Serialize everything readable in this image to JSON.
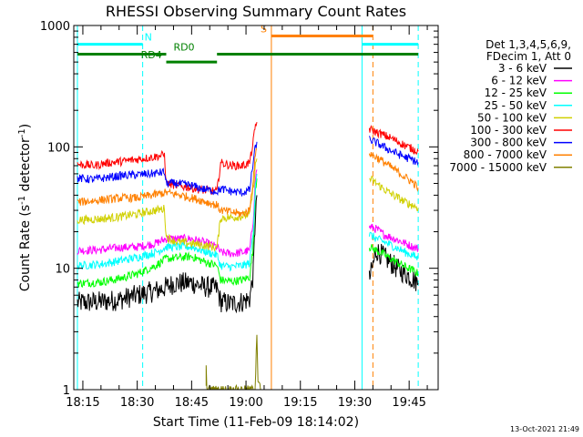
{
  "chart_data": {
    "type": "line",
    "title": "RHESSI Observing Summary Count Rates",
    "xlabel": "Start Time (11-Feb-09 18:14:02)",
    "ylabel": "Count Rate (s",
    "ylabel_sup1": "-1",
    "ylabel_mid": " detector",
    "ylabel_sup2": "-1",
    "ylabel_end": ")",
    "x_unit": "minutes after 18:00 UT",
    "xlim": [
      12.5,
      113.0
    ],
    "ylim": [
      1,
      1000
    ],
    "y_scale": "log",
    "x_ticks": [
      {
        "value": 15,
        "label": "18:15"
      },
      {
        "value": 30,
        "label": "18:30"
      },
      {
        "value": 45,
        "label": "18:45"
      },
      {
        "value": 60,
        "label": "19:00"
      },
      {
        "value": 75,
        "label": "19:15"
      },
      {
        "value": 90,
        "label": "19:30"
      },
      {
        "value": 105,
        "label": "19:45"
      }
    ],
    "y_ticks": [
      {
        "value": 1,
        "label": "1"
      },
      {
        "value": 10,
        "label": "10"
      },
      {
        "value": 100,
        "label": "100"
      },
      {
        "value": 1000,
        "label": "1000"
      }
    ],
    "legend_header": [
      "Det 1,3,4,5,6,9,",
      "FDecim 1, Att 0"
    ],
    "legend_position": "right",
    "series": [
      {
        "name": "3 - 6 keV",
        "color": "#000000",
        "segments": [
          [
            [
              13.5,
              5.2
            ],
            [
              20,
              5.3
            ],
            [
              25,
              5.5
            ],
            [
              30,
              6.0
            ],
            [
              35,
              6.5
            ],
            [
              38,
              7.0
            ],
            [
              40,
              7.5
            ],
            [
              45,
              7.6
            ],
            [
              48,
              7.1
            ],
            [
              52,
              6.8
            ],
            [
              53,
              5.3
            ],
            [
              56,
              5.1
            ],
            [
              59,
              5.3
            ],
            [
              61,
              5.6
            ],
            [
              62,
              9
            ],
            [
              62.6,
              28
            ],
            [
              63,
              40
            ]
          ],
          [
            [
              94,
              8
            ],
            [
              96,
              14
            ],
            [
              98,
              12.5
            ],
            [
              100,
              11
            ],
            [
              102,
              9.8
            ],
            [
              104,
              9
            ],
            [
              106,
              8.2
            ],
            [
              107.5,
              7.5
            ]
          ]
        ]
      },
      {
        "name": "6 - 12 keV",
        "color": "#ff00ff",
        "segments": [
          [
            [
              13.5,
              14
            ],
            [
              20,
              14.2
            ],
            [
              25,
              14.8
            ],
            [
              30,
              15
            ],
            [
              35,
              16
            ],
            [
              38,
              17.5
            ],
            [
              45,
              17.5
            ],
            [
              48,
              16.5
            ],
            [
              52,
              15
            ],
            [
              53,
              13.5
            ],
            [
              56,
              13.2
            ],
            [
              59,
              13.5
            ],
            [
              61,
              14
            ],
            [
              62,
              25
            ],
            [
              62.6,
              55
            ],
            [
              63,
              65
            ]
          ],
          [
            [
              94,
              22
            ],
            [
              96,
              21
            ],
            [
              98,
              19
            ],
            [
              100,
              18
            ],
            [
              102,
              17
            ],
            [
              104,
              16
            ],
            [
              106,
              15
            ],
            [
              107.5,
              14.5
            ]
          ]
        ]
      },
      {
        "name": "12 - 25 keV",
        "color": "#00ff00",
        "segments": [
          [
            [
              13.5,
              7.5
            ],
            [
              20,
              7.7
            ],
            [
              25,
              8.2
            ],
            [
              30,
              9.0
            ],
            [
              35,
              10.5
            ],
            [
              38,
              12
            ],
            [
              45,
              12.5
            ],
            [
              48,
              11.5
            ],
            [
              52,
              10.5
            ],
            [
              53,
              8.0
            ],
            [
              56,
              7.8
            ],
            [
              59,
              8.0
            ],
            [
              61,
              8.5
            ],
            [
              62,
              15
            ],
            [
              62.6,
              45
            ],
            [
              63,
              55
            ]
          ],
          [
            [
              94,
              15
            ],
            [
              96,
              14
            ],
            [
              98,
              13
            ],
            [
              100,
              12
            ],
            [
              102,
              11
            ],
            [
              104,
              10.3
            ],
            [
              106,
              9.6
            ],
            [
              107.5,
              9
            ]
          ]
        ]
      },
      {
        "name": "25 - 50 keV",
        "color": "#00ffff",
        "segments": [
          [
            [
              13.5,
              10.5
            ],
            [
              20,
              10.8
            ],
            [
              25,
              11.5
            ],
            [
              30,
              12.3
            ],
            [
              35,
              13.5
            ],
            [
              38,
              15
            ],
            [
              45,
              15
            ],
            [
              48,
              14
            ],
            [
              52,
              12.8
            ],
            [
              53,
              10.5
            ],
            [
              56,
              10.3
            ],
            [
              59,
              10.5
            ],
            [
              61,
              11
            ],
            [
              62,
              20
            ],
            [
              62.6,
              50
            ],
            [
              63,
              60
            ]
          ],
          [
            [
              94,
              19
            ],
            [
              96,
              17.5
            ],
            [
              98,
              16.5
            ],
            [
              100,
              15.5
            ],
            [
              102,
              14.5
            ],
            [
              104,
              13.5
            ],
            [
              106,
              12.8
            ],
            [
              107.5,
              12
            ]
          ]
        ]
      },
      {
        "name": "50 - 100 keV",
        "color": "#d0d000",
        "segments": [
          [
            [
              13.5,
              25
            ],
            [
              20,
              25.5
            ],
            [
              25,
              26.5
            ],
            [
              30,
              28
            ],
            [
              35,
              30
            ],
            [
              37.5,
              31
            ],
            [
              38,
              18
            ],
            [
              41,
              16.5
            ],
            [
              45,
              16
            ],
            [
              48,
              15.5
            ],
            [
              52,
              14.8
            ],
            [
              53,
              26
            ],
            [
              56,
              26.2
            ],
            [
              59,
              26.8
            ],
            [
              61,
              28
            ],
            [
              62,
              45
            ],
            [
              62.6,
              70
            ],
            [
              63,
              80
            ]
          ],
          [
            [
              94,
              55
            ],
            [
              96,
              50
            ],
            [
              98,
              45
            ],
            [
              100,
              41
            ],
            [
              102,
              38
            ],
            [
              104,
              35
            ],
            [
              106,
              33
            ],
            [
              107.5,
              31.5
            ]
          ]
        ]
      },
      {
        "name": "100 - 300 keV",
        "color": "#ff0000",
        "segments": [
          [
            [
              13.5,
              72
            ],
            [
              18,
              70
            ],
            [
              22,
              74
            ],
            [
              26,
              76
            ],
            [
              30,
              79
            ],
            [
              34,
              82
            ],
            [
              37.5,
              86
            ],
            [
              38,
              50
            ],
            [
              41,
              48
            ],
            [
              45,
              46
            ],
            [
              48,
              44
            ],
            [
              52,
              43
            ],
            [
              53,
              74
            ],
            [
              56,
              70
            ],
            [
              59,
              70
            ],
            [
              61,
              74
            ],
            [
              62,
              110
            ],
            [
              62.6,
              150
            ],
            [
              63,
              160
            ]
          ],
          [
            [
              94,
              140
            ],
            [
              96,
              132
            ],
            [
              98,
              125
            ],
            [
              100,
              118
            ],
            [
              102,
              110
            ],
            [
              104,
              102
            ],
            [
              106,
              96
            ],
            [
              107.5,
              92
            ]
          ]
        ]
      },
      {
        "name": "300 - 800 keV",
        "color": "#0000ff",
        "segments": [
          [
            [
              13.5,
              55
            ],
            [
              18,
              54
            ],
            [
              22,
              56
            ],
            [
              26,
              58
            ],
            [
              30,
              59
            ],
            [
              34,
              60
            ],
            [
              37.5,
              62
            ],
            [
              38,
              50
            ],
            [
              41,
              50
            ],
            [
              45,
              48
            ],
            [
              48,
              45
            ],
            [
              52,
              43
            ],
            [
              53,
              45
            ],
            [
              56,
              43
            ],
            [
              59,
              42
            ],
            [
              61,
              44
            ],
            [
              62,
              75
            ],
            [
              62.6,
              100
            ],
            [
              63,
              110
            ]
          ],
          [
            [
              94,
              115
            ],
            [
              96,
              108
            ],
            [
              98,
              100
            ],
            [
              100,
              93
            ],
            [
              102,
              87
            ],
            [
              104,
              82
            ],
            [
              106,
              78
            ],
            [
              107.5,
              74
            ]
          ]
        ]
      },
      {
        "name": "800 - 7000 keV",
        "color": "#ff8000",
        "segments": [
          [
            [
              13.5,
              35
            ],
            [
              18,
              36
            ],
            [
              22,
              37
            ],
            [
              26,
              38
            ],
            [
              30,
              38
            ],
            [
              34,
              40
            ],
            [
              38,
              42
            ],
            [
              42,
              40
            ],
            [
              45,
              38
            ],
            [
              48,
              36
            ],
            [
              52,
              33
            ],
            [
              53,
              30
            ],
            [
              56,
              29
            ],
            [
              59,
              28
            ],
            [
              61,
              30
            ],
            [
              62,
              55
            ],
            [
              62.6,
              85
            ],
            [
              63,
              95
            ]
          ],
          [
            [
              94,
              90
            ],
            [
              96,
              82
            ],
            [
              98,
              75
            ],
            [
              100,
              68
            ],
            [
              102,
              62
            ],
            [
              104,
              56
            ],
            [
              106,
              51
            ],
            [
              107.5,
              46
            ]
          ]
        ]
      },
      {
        "name": "7000 - 15000 keV",
        "color": "#808000",
        "segments": [
          [
            [
              49,
              1
            ],
            [
              49,
              1.5
            ],
            [
              49.2,
              1
            ],
            [
              62.5,
              1
            ],
            [
              63,
              3
            ],
            [
              63.3,
              1.2
            ],
            [
              64,
              1
            ]
          ]
        ]
      }
    ],
    "annotations": [
      {
        "label": "N",
        "color": "#00ffff",
        "x_start": 13.5,
        "x_end": 31.5,
        "y": 700,
        "label_x": 32
      },
      {
        "label": "N",
        "color": "#00ffff",
        "x_start": 92,
        "x_end": 107.5,
        "y": 700,
        "label_x": 0
      },
      {
        "label": "S",
        "color": "#ff8000",
        "x_start": 67,
        "x_end": 95,
        "y": 820,
        "label_x": 64
      },
      {
        "label": "RD0",
        "color": "#008000",
        "x_start": 13.5,
        "x_end": 38,
        "y": 580,
        "label_x": 40
      },
      {
        "label": "RD4",
        "color": "#008000",
        "x_start": 38,
        "x_end": 52,
        "y": 500,
        "label_x": 31
      },
      {
        "label": "RD0",
        "color": "#008000",
        "x_start": 52,
        "x_end": 107.5,
        "y": 580,
        "label_x": 0
      }
    ],
    "vertical_lines": [
      {
        "x": 13.5,
        "color": "#00ffff",
        "style": "solid"
      },
      {
        "x": 31.5,
        "color": "#00ffff",
        "style": "dashed"
      },
      {
        "x": 67,
        "color": "#ff8000",
        "style": "solid"
      },
      {
        "x": 92,
        "color": "#00ffff",
        "style": "solid"
      },
      {
        "x": 95,
        "color": "#ff8000",
        "style": "dashed"
      },
      {
        "x": 107.5,
        "color": "#00ffff",
        "style": "dashed"
      }
    ],
    "grid": false
  },
  "footer_date": "13-Oct-2021 21:49"
}
